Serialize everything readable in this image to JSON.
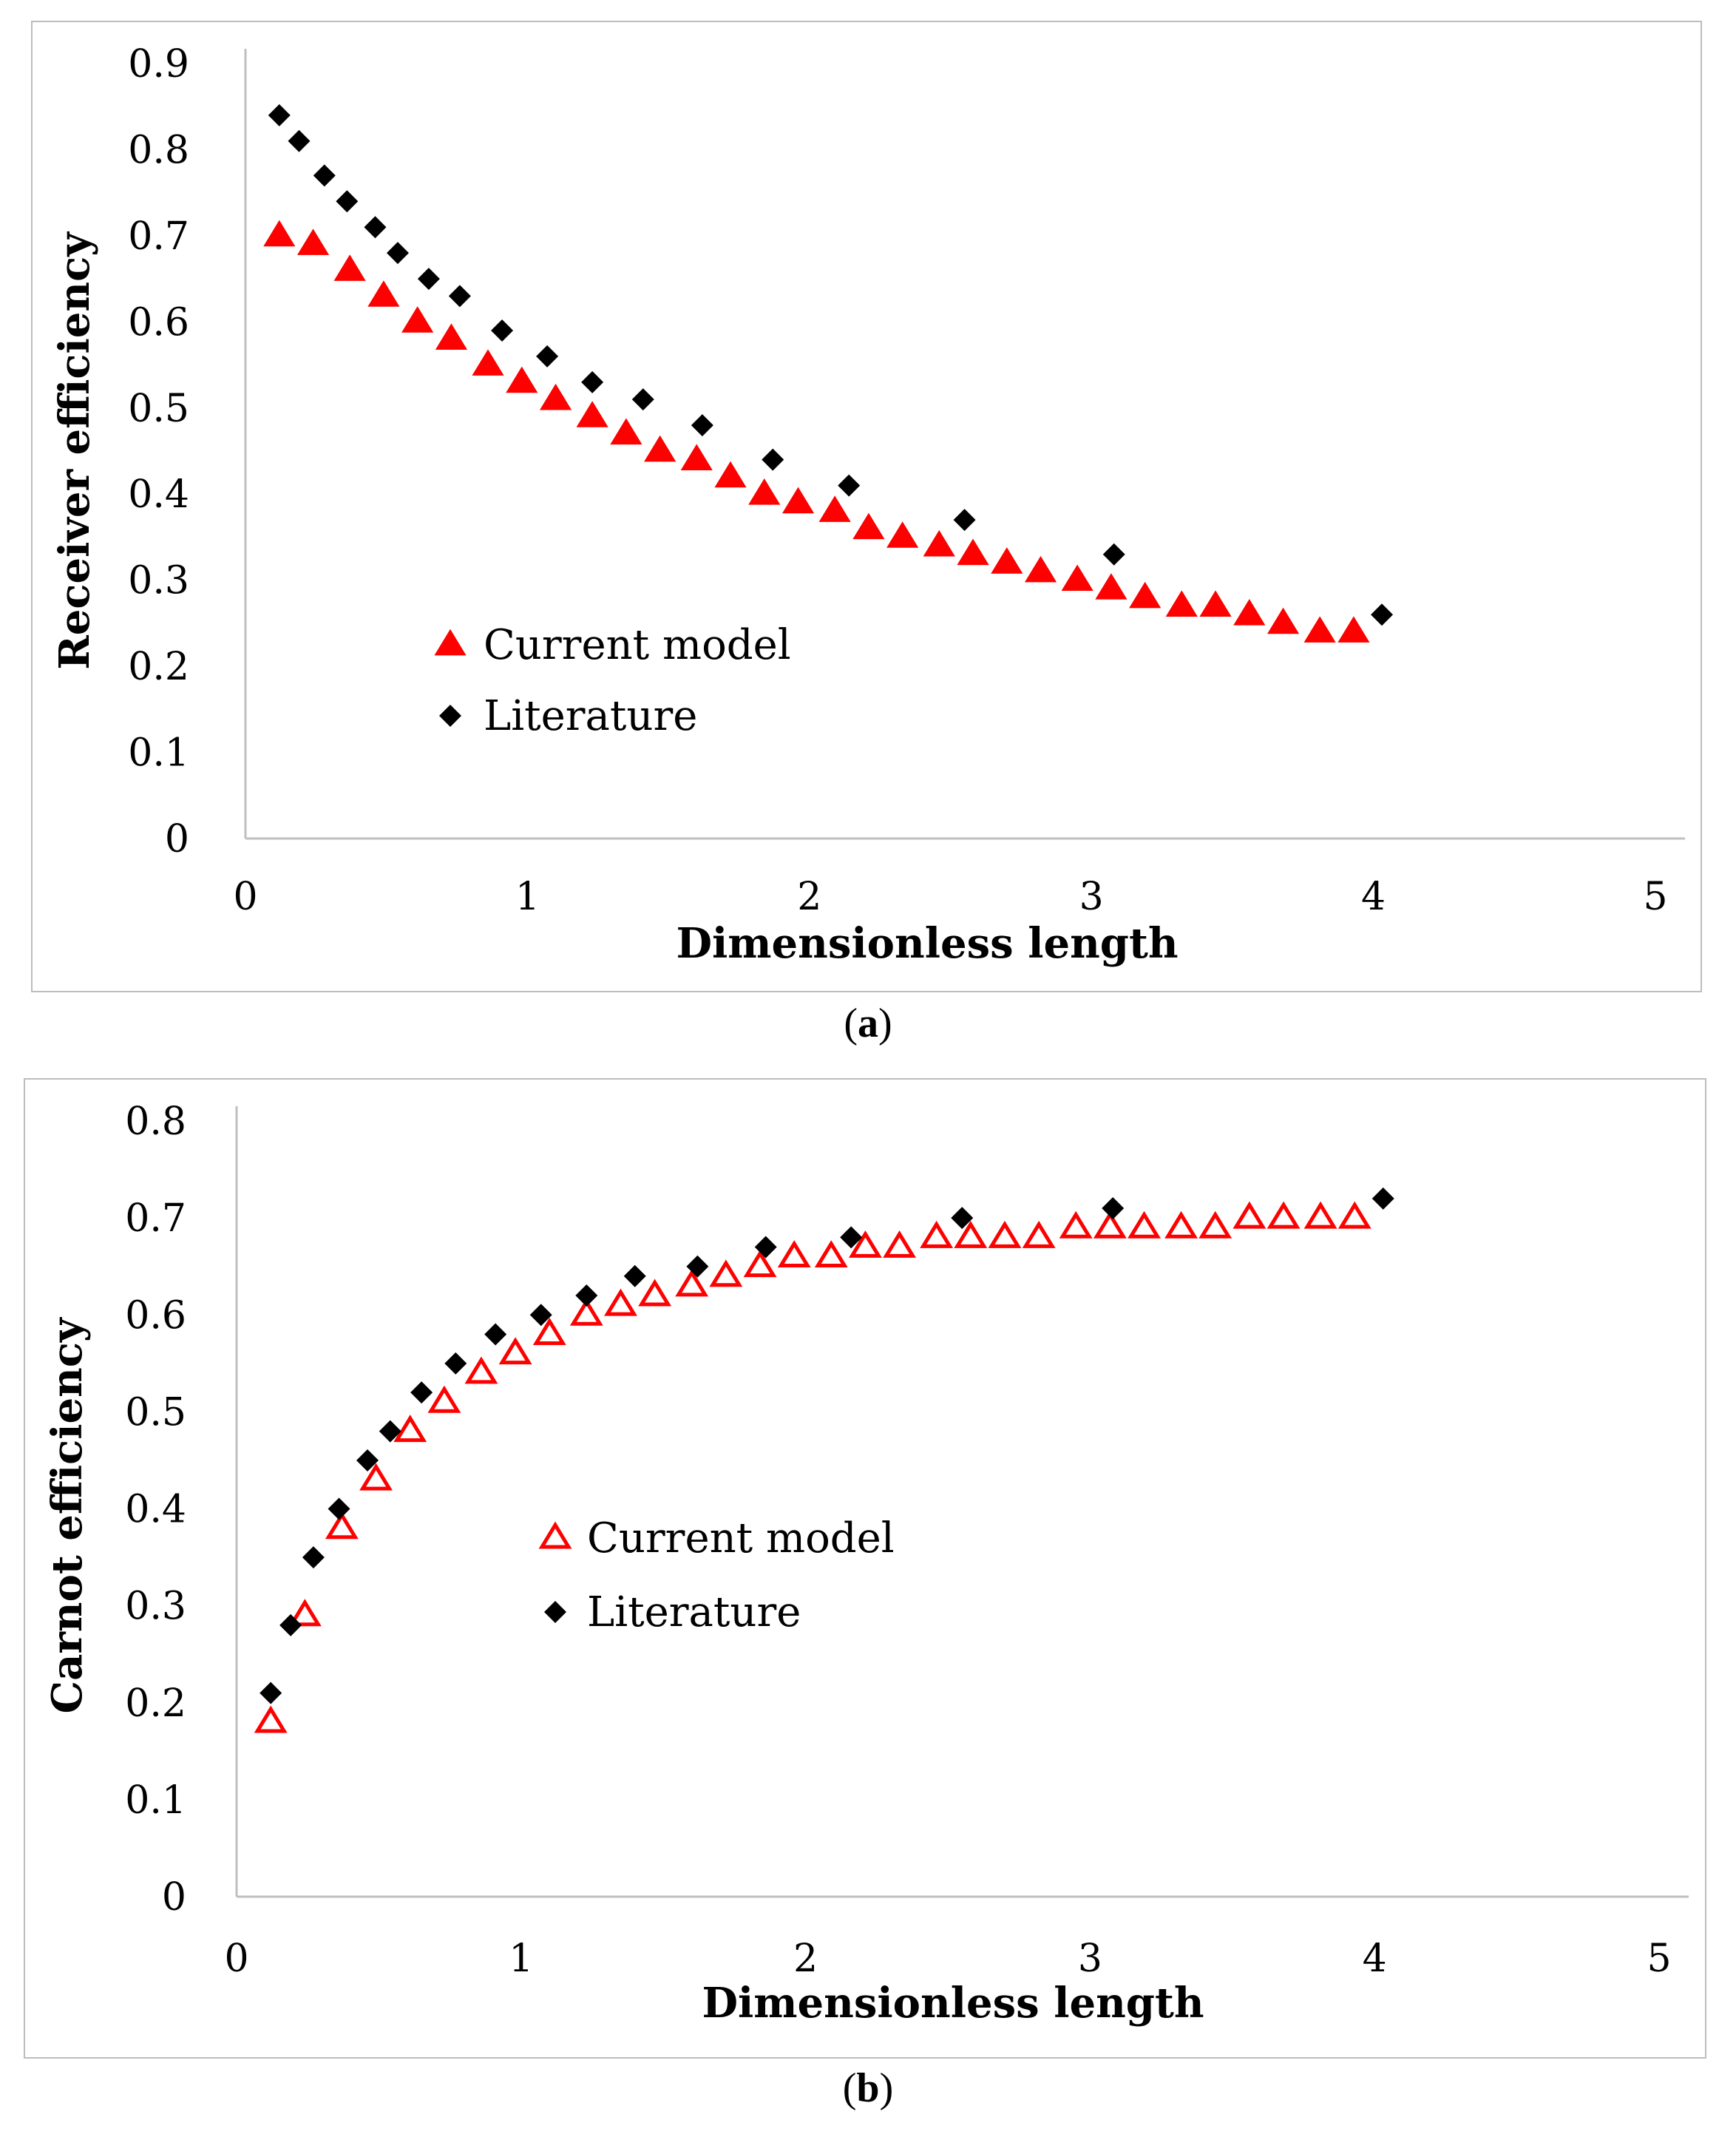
{
  "chart_data": [
    {
      "type": "scatter",
      "panel_label": "a",
      "xlabel": "Dimensionless length",
      "ylabel": "Receiver efficiency",
      "xlim": [
        0,
        5
      ],
      "ylim": [
        0,
        0.9
      ],
      "x_ticks": [
        "0",
        "1",
        "2",
        "3",
        "4",
        "5"
      ],
      "y_ticks": [
        "0",
        "0.1",
        "0.2",
        "0.3",
        "0.4",
        "0.5",
        "0.6",
        "0.7",
        "0.8",
        "0.9"
      ],
      "legend_position": "center-left",
      "series": [
        {
          "name": "Current model",
          "marker": "triangle-filled",
          "color": "#ff0000",
          "x": [
            0.12,
            0.24,
            0.37,
            0.49,
            0.61,
            0.73,
            0.86,
            0.98,
            1.1,
            1.23,
            1.35,
            1.47,
            1.6,
            1.72,
            1.84,
            1.96,
            2.09,
            2.21,
            2.33,
            2.46,
            2.58,
            2.7,
            2.82,
            2.95,
            3.07,
            3.19,
            3.32,
            3.44,
            3.56,
            3.68,
            3.81,
            3.93
          ],
          "y": [
            0.7,
            0.69,
            0.66,
            0.63,
            0.6,
            0.58,
            0.55,
            0.53,
            0.51,
            0.49,
            0.47,
            0.45,
            0.44,
            0.42,
            0.4,
            0.39,
            0.38,
            0.36,
            0.35,
            0.34,
            0.33,
            0.32,
            0.31,
            0.3,
            0.29,
            0.28,
            0.27,
            0.27,
            0.26,
            0.25,
            0.24,
            0.24
          ]
        },
        {
          "name": "Literature",
          "marker": "diamond",
          "color": "#000000",
          "x": [
            0.12,
            0.19,
            0.28,
            0.36,
            0.46,
            0.54,
            0.65,
            0.76,
            0.91,
            1.07,
            1.23,
            1.41,
            1.62,
            1.87,
            2.14,
            2.55,
            3.08,
            4.03
          ],
          "y": [
            0.84,
            0.81,
            0.77,
            0.74,
            0.71,
            0.68,
            0.65,
            0.63,
            0.59,
            0.56,
            0.53,
            0.51,
            0.48,
            0.44,
            0.41,
            0.37,
            0.33,
            0.26
          ]
        }
      ]
    },
    {
      "type": "scatter",
      "panel_label": "b",
      "xlabel": "Dimensionless length",
      "ylabel": "Carnot efficiency",
      "xlim": [
        0,
        5
      ],
      "ylim": [
        0,
        0.8
      ],
      "x_ticks": [
        "0",
        "1",
        "2",
        "3",
        "4",
        "5"
      ],
      "y_ticks": [
        "0",
        "0.1",
        "0.2",
        "0.3",
        "0.4",
        "0.5",
        "0.6",
        "0.7",
        "0.8"
      ],
      "legend_position": "center",
      "series": [
        {
          "name": "Current model",
          "marker": "triangle-open",
          "color": "#ff0000",
          "x": [
            0.12,
            0.24,
            0.37,
            0.49,
            0.61,
            0.73,
            0.86,
            0.98,
            1.1,
            1.23,
            1.35,
            1.47,
            1.6,
            1.72,
            1.84,
            1.96,
            2.09,
            2.21,
            2.33,
            2.46,
            2.58,
            2.7,
            2.82,
            2.95,
            3.07,
            3.19,
            3.32,
            3.44,
            3.56,
            3.68,
            3.81,
            3.93
          ],
          "y": [
            0.18,
            0.29,
            0.38,
            0.43,
            0.48,
            0.51,
            0.54,
            0.56,
            0.58,
            0.6,
            0.61,
            0.62,
            0.63,
            0.64,
            0.65,
            0.66,
            0.66,
            0.67,
            0.67,
            0.68,
            0.68,
            0.68,
            0.68,
            0.69,
            0.69,
            0.69,
            0.69,
            0.69,
            0.7,
            0.7,
            0.7,
            0.7
          ]
        },
        {
          "name": "Literature",
          "marker": "diamond",
          "color": "#000000",
          "x": [
            0.12,
            0.19,
            0.27,
            0.36,
            0.46,
            0.54,
            0.65,
            0.77,
            0.91,
            1.07,
            1.23,
            1.4,
            1.62,
            1.86,
            2.16,
            2.55,
            3.08,
            4.03
          ],
          "y": [
            0.21,
            0.28,
            0.35,
            0.4,
            0.45,
            0.48,
            0.52,
            0.55,
            0.58,
            0.6,
            0.62,
            0.64,
            0.65,
            0.67,
            0.68,
            0.7,
            0.71,
            0.72
          ]
        }
      ]
    }
  ],
  "captions": [
    "a",
    "b"
  ]
}
